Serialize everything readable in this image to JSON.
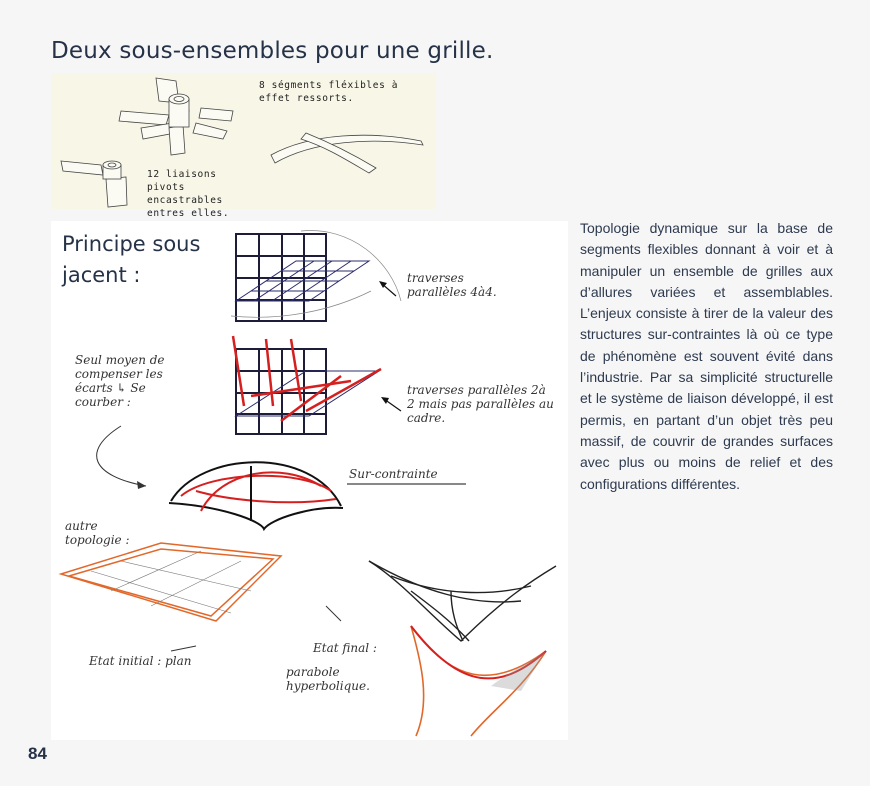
{
  "title": "Deux sous-ensembles pour une grille.",
  "top_panel": {
    "note_segments": "8 ségments fléxibles à effet ressorts.",
    "note_pivots": "12 liaisons pivots encastrables entres elles."
  },
  "sketch": {
    "heading": "Principe sous jacent :",
    "annotations": {
      "traverses_1": "traverses parallèles 4à4.",
      "seul_moyen": "Seul moyen de compenser les écarts ↳ Se courber :",
      "traverses_2": "traverses parallèles 2à 2 mais pas parallèles au cadre.",
      "sur_contrainte": "Sur-contrainte",
      "autre_topologie": "autre topologie :",
      "etat_initial": "Etat initial : plan",
      "etat_final": "Etat final :",
      "parabole": "parabole hyperbolique."
    }
  },
  "body_text": "Topologie dynamique sur la base de segments flexibles donnant à voir et à manipuler un ensemble de grilles aux d’allures variées et assemblables. L’enjeux consiste à tirer de la valeur des structures sur-contraintes là où ce type de phénomène est souvent évité dans l’industrie. Par sa simplicité structurelle et le système de liaison développé, il est permis, en partant d’un objet très peu massif, de couvrir de grandes surfaces avec plus ou moins de relief et des configurations différentes.",
  "page_number": "84",
  "colors": {
    "accent_red": "#d62020",
    "accent_orange": "#e2682a",
    "ink": "#1d1d3a"
  }
}
